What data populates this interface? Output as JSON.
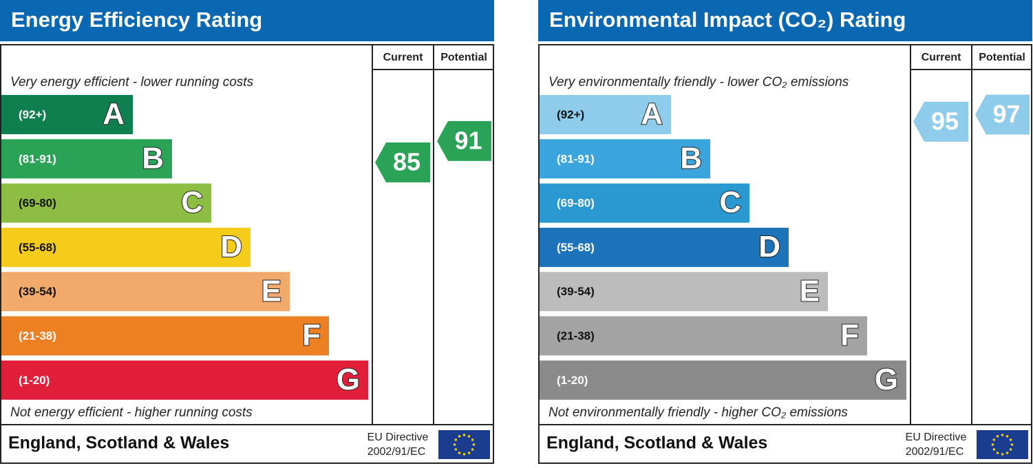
{
  "chart_data": [
    {
      "type": "bar",
      "title": "Energy Efficiency Rating",
      "column_headers": [
        "Current",
        "Potential"
      ],
      "top_note": "Very energy efficient - lower running costs",
      "bottom_note": "Not energy efficient - higher running costs",
      "categories": [
        "A",
        "B",
        "C",
        "D",
        "E",
        "F",
        "G"
      ],
      "ranges": [
        "(92+)",
        "(81-91)",
        "(69-80)",
        "(55-68)",
        "(39-54)",
        "(21-38)",
        "(1-20)"
      ],
      "colors": [
        "#0f7f4f",
        "#2aa357",
        "#8dbd42",
        "#f5cc19",
        "#f1a96c",
        "#ec8023",
        "#e21f3b"
      ],
      "current": 85,
      "potential": 91,
      "arrow_color": "#2aa357",
      "footer": {
        "region": "England, Scotland & Wales",
        "directive": [
          "EU Directive",
          "2002/91/EC"
        ]
      }
    },
    {
      "type": "bar",
      "title": "Environmental Impact (CO₂) Rating",
      "column_headers": [
        "Current",
        "Potential"
      ],
      "top_note": "Very environmentally friendly - lower CO₂ emissions",
      "bottom_note": "Not environmentally friendly - higher CO₂ emissions",
      "categories": [
        "A",
        "B",
        "C",
        "D",
        "E",
        "F",
        "G"
      ],
      "ranges": [
        "(92+)",
        "(81-91)",
        "(69-80)",
        "(55-68)",
        "(39-54)",
        "(21-38)",
        "(1-20)"
      ],
      "colors": [
        "#8fcbea",
        "#3aa5dc",
        "#2a99d2",
        "#1c73b9",
        "#bcbcbc",
        "#a3a3a3",
        "#8a8a8a"
      ],
      "current": 95,
      "potential": 97,
      "arrow_color": "#8fcbea",
      "footer": {
        "region": "England, Scotland & Wales",
        "directive": [
          "EU Directive",
          "2002/91/EC"
        ]
      }
    }
  ]
}
